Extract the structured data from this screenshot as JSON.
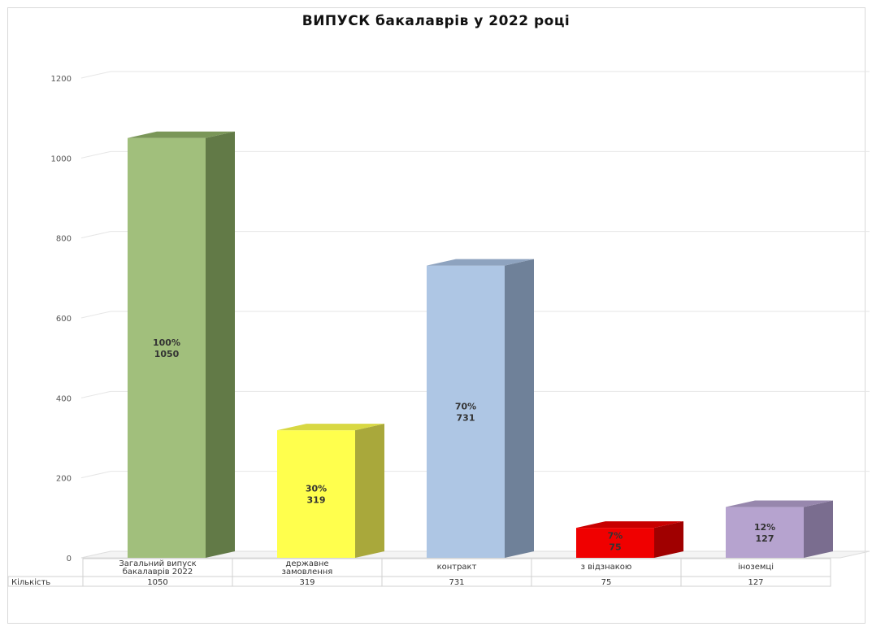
{
  "chart_data": {
    "type": "bar",
    "title": "ВИПУСК бакалаврів у 2022 році",
    "xlabel": "",
    "ylabel": "",
    "ylim": [
      0,
      1200
    ],
    "yticks": [
      0,
      200,
      400,
      600,
      800,
      1000,
      1200
    ],
    "grid": true,
    "three_d": true,
    "categories": [
      [
        "Загальний випуск",
        "бакалаврів 2022"
      ],
      [
        "державне",
        "замовлення"
      ],
      [
        "контракт"
      ],
      [
        "з відзнакою"
      ],
      [
        "іноземці"
      ]
    ],
    "series": [
      {
        "name": "Кількість",
        "values": [
          1050,
          319,
          731,
          75,
          127
        ]
      }
    ],
    "data_labels": [
      [
        "100%",
        "1050"
      ],
      [
        "30%",
        "319"
      ],
      [
        "70%",
        "731"
      ],
      [
        "7%",
        "75"
      ],
      [
        "12%",
        "127"
      ]
    ],
    "bar_colors": [
      {
        "front": "#a1bf7c",
        "side": "#627a47",
        "top": "#7a9658"
      },
      {
        "front": "#ffff4d",
        "side": "#a9a83b",
        "top": "#d8d843"
      },
      {
        "front": "#aec6e4",
        "side": "#6f8199",
        "top": "#8ea3bf"
      },
      {
        "front": "#f00000",
        "side": "#a00000",
        "top": "#c80000"
      },
      {
        "front": "#b6a3cf",
        "side": "#7a6d8f",
        "top": "#9787ad"
      }
    ],
    "category_label_colors": [
      "#333333",
      "#333333",
      "#d04040",
      "#333333",
      "#333333"
    ],
    "data_label_colors": [
      "#333333",
      "#333333",
      "#333333",
      "#b00000",
      "#333333"
    ],
    "table": {
      "row_label": "Кількість",
      "values": [
        "1050",
        "319",
        "731",
        "75",
        "127"
      ]
    }
  }
}
